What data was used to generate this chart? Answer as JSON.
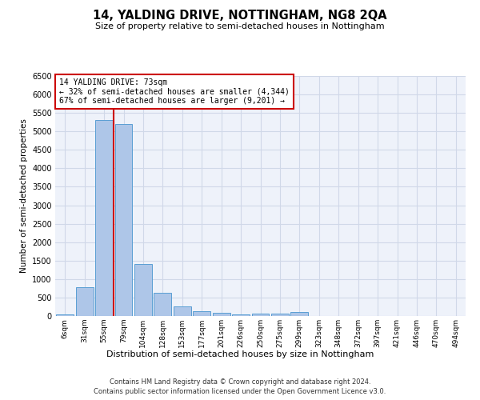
{
  "title": "14, YALDING DRIVE, NOTTINGHAM, NG8 2QA",
  "subtitle": "Size of property relative to semi-detached houses in Nottingham",
  "xlabel": "Distribution of semi-detached houses by size in Nottingham",
  "ylabel": "Number of semi-detached properties",
  "property_label": "14 YALDING DRIVE: 73sqm",
  "annotation_line1": "← 32% of semi-detached houses are smaller (4,344)",
  "annotation_line2": "67% of semi-detached houses are larger (9,201) →",
  "categories": [
    "6sqm",
    "31sqm",
    "55sqm",
    "79sqm",
    "104sqm",
    "128sqm",
    "153sqm",
    "177sqm",
    "201sqm",
    "226sqm",
    "250sqm",
    "275sqm",
    "299sqm",
    "323sqm",
    "348sqm",
    "372sqm",
    "397sqm",
    "421sqm",
    "446sqm",
    "470sqm",
    "494sqm"
  ],
  "bar_values": [
    50,
    780,
    5300,
    5190,
    1400,
    630,
    260,
    140,
    80,
    50,
    70,
    70,
    100,
    0,
    0,
    0,
    0,
    0,
    0,
    0,
    0
  ],
  "bar_color": "#aec6e8",
  "bar_edge_color": "#5a9fd4",
  "red_line_color": "#cc0000",
  "annotation_box_color": "#cc0000",
  "grid_color": "#d0d8e8",
  "background_color": "#eef2fa",
  "ylim": [
    0,
    6500
  ],
  "yticks": [
    0,
    500,
    1000,
    1500,
    2000,
    2500,
    3000,
    3500,
    4000,
    4500,
    5000,
    5500,
    6000,
    6500
  ],
  "red_line_x": 2.5,
  "footer_line1": "Contains HM Land Registry data © Crown copyright and database right 2024.",
  "footer_line2": "Contains public sector information licensed under the Open Government Licence v3.0."
}
